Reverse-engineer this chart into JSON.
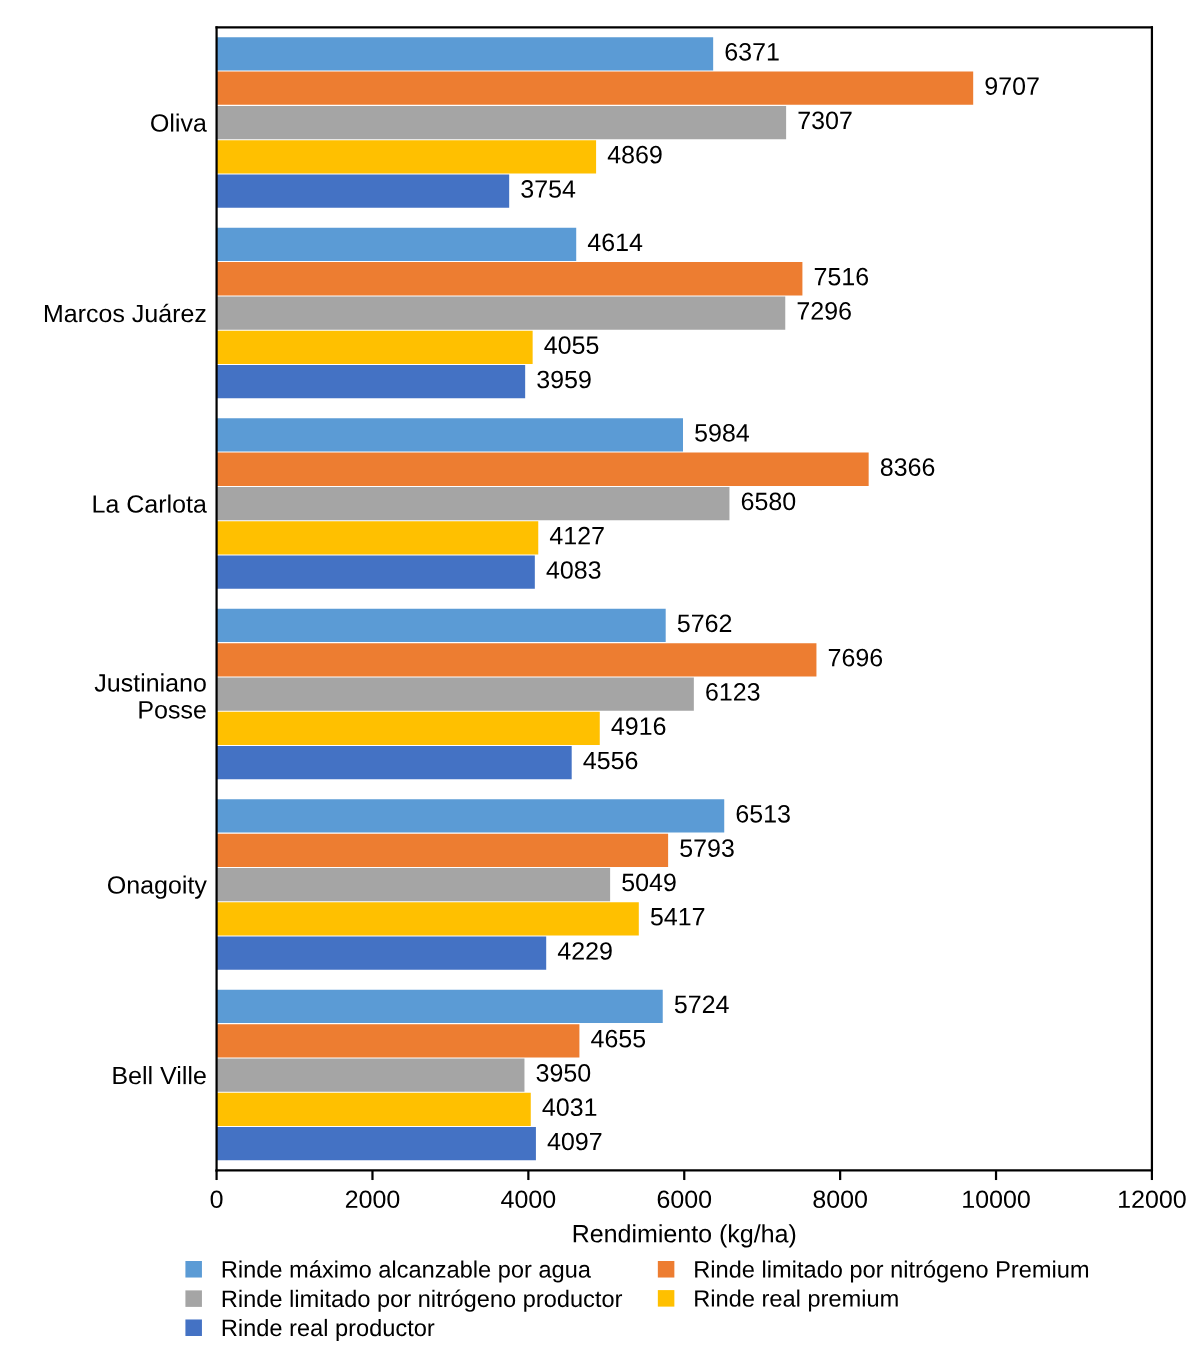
{
  "chart_data": {
    "type": "bar",
    "orientation": "horizontal",
    "xlabel": "Rendimiento (kg/ha)",
    "categories": [
      "Oliva",
      "Marcos Juárez",
      "La Carlota",
      "Justiniano\nPosse",
      "Onagoity",
      "Bell Ville"
    ],
    "series": [
      {
        "name": "Rinde máximo alcanzable por agua",
        "color": "#5b9bd5",
        "values": [
          6371,
          4614,
          5984,
          5762,
          6513,
          5724
        ]
      },
      {
        "name": "Rinde limitado por nitrógeno Premium",
        "color": "#ed7d31",
        "values": [
          9707,
          7516,
          8366,
          7696,
          5793,
          4655
        ]
      },
      {
        "name": "Rinde limitado por nitrógeno productor",
        "color": "#a5a5a5",
        "values": [
          7307,
          7296,
          6580,
          6123,
          5049,
          3950
        ]
      },
      {
        "name": "Rinde real premium",
        "color": "#ffc000",
        "values": [
          4869,
          4055,
          4127,
          4916,
          5417,
          4031
        ]
      },
      {
        "name": "Rinde real productor",
        "color": "#4472c4",
        "values": [
          3754,
          3959,
          4083,
          4556,
          4229,
          4097
        ]
      }
    ],
    "xlim": [
      0,
      12000
    ],
    "xticks": [
      0,
      2000,
      4000,
      6000,
      8000,
      10000,
      12000
    ],
    "data_labels": true,
    "grid": false,
    "legend": "bottom"
  }
}
